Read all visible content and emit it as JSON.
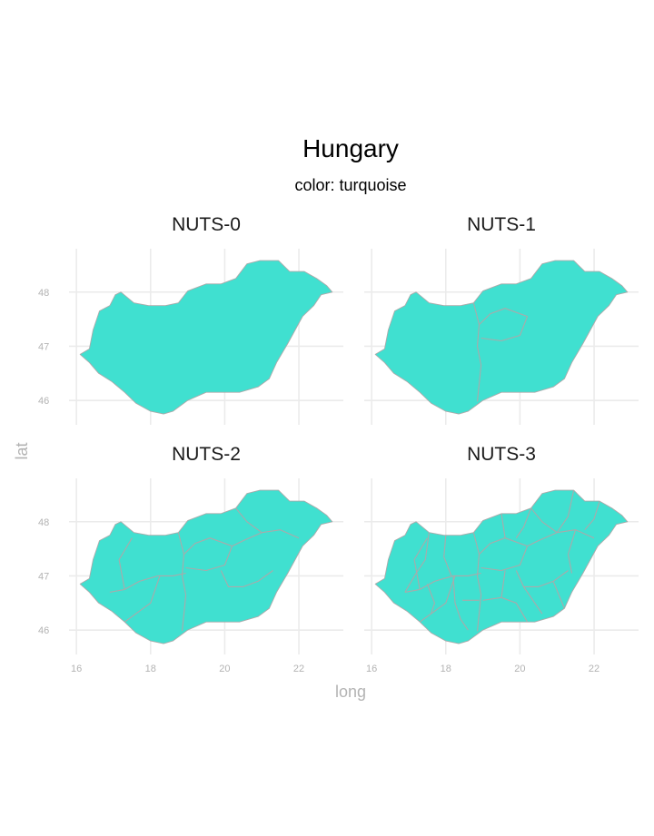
{
  "title": "Hungary",
  "subtitle": "color: turquoise",
  "xlabel": "long",
  "ylabel": "lat",
  "colors": {
    "fill": "#40E0D0",
    "border": "#AAAAAA",
    "grid": "#EBEBEB",
    "tick_text": "#B3B3B3",
    "axis_title": "#B3B3B3",
    "title_text": "#000000"
  },
  "chart_data": {
    "type": "map",
    "xlim": [
      15.8,
      23.2
    ],
    "ylim": [
      45.55,
      48.8
    ],
    "x_ticks": [
      16,
      18,
      20,
      22
    ],
    "y_ticks": [
      46,
      47,
      48
    ],
    "grid": true,
    "outline": [
      [
        16.1,
        46.85
      ],
      [
        16.35,
        46.95
      ],
      [
        16.45,
        47.3
      ],
      [
        16.62,
        47.65
      ],
      [
        16.9,
        47.75
      ],
      [
        17.05,
        47.95
      ],
      [
        17.2,
        48.0
      ],
      [
        17.55,
        47.8
      ],
      [
        17.95,
        47.75
      ],
      [
        18.4,
        47.75
      ],
      [
        18.75,
        47.8
      ],
      [
        19.0,
        48.02
      ],
      [
        19.5,
        48.15
      ],
      [
        19.9,
        48.15
      ],
      [
        20.3,
        48.25
      ],
      [
        20.6,
        48.52
      ],
      [
        20.95,
        48.58
      ],
      [
        21.45,
        48.58
      ],
      [
        21.75,
        48.38
      ],
      [
        22.15,
        48.38
      ],
      [
        22.48,
        48.25
      ],
      [
        22.75,
        48.12
      ],
      [
        22.9,
        48.0
      ],
      [
        22.6,
        47.95
      ],
      [
        22.4,
        47.75
      ],
      [
        22.1,
        47.55
      ],
      [
        21.7,
        47.05
      ],
      [
        21.4,
        46.7
      ],
      [
        21.2,
        46.4
      ],
      [
        20.9,
        46.25
      ],
      [
        20.4,
        46.15
      ],
      [
        19.9,
        46.15
      ],
      [
        19.5,
        46.15
      ],
      [
        19.0,
        46.0
      ],
      [
        18.6,
        45.8
      ],
      [
        18.35,
        45.75
      ],
      [
        18.0,
        45.8
      ],
      [
        17.6,
        45.95
      ],
      [
        17.3,
        46.15
      ],
      [
        16.95,
        46.35
      ],
      [
        16.6,
        46.5
      ],
      [
        16.35,
        46.7
      ]
    ],
    "panels": [
      {
        "label": "NUTS-0",
        "level": 0
      },
      {
        "label": "NUTS-1",
        "level": 1
      },
      {
        "label": "NUTS-2",
        "level": 2
      },
      {
        "label": "NUTS-3",
        "level": 3
      }
    ],
    "borders": {
      "nuts1": [
        [
          [
            18.85,
            45.98
          ],
          [
            18.9,
            46.3
          ],
          [
            18.95,
            46.65
          ],
          [
            18.85,
            47.0
          ],
          [
            18.9,
            47.4
          ],
          [
            18.75,
            47.8
          ]
        ],
        [
          [
            18.9,
            47.4
          ],
          [
            19.2,
            47.6
          ],
          [
            19.6,
            47.7
          ],
          [
            20.2,
            47.55
          ],
          [
            20.0,
            47.2
          ],
          [
            19.5,
            47.1
          ],
          [
            18.95,
            47.15
          ]
        ]
      ],
      "nuts2": [
        [
          [
            16.9,
            46.7
          ],
          [
            17.3,
            46.75
          ],
          [
            17.7,
            46.9
          ],
          [
            18.2,
            47.0
          ],
          [
            18.6,
            47.0
          ],
          [
            18.95,
            47.05
          ]
        ],
        [
          [
            17.3,
            46.75
          ],
          [
            17.15,
            47.3
          ],
          [
            17.5,
            47.7
          ]
        ],
        [
          [
            18.25,
            47.0
          ],
          [
            18.0,
            46.5
          ],
          [
            17.6,
            46.3
          ],
          [
            17.3,
            46.15
          ]
        ],
        [
          [
            19.9,
            47.1
          ],
          [
            20.1,
            46.8
          ],
          [
            20.5,
            46.8
          ],
          [
            20.9,
            46.9
          ],
          [
            21.3,
            47.1
          ]
        ],
        [
          [
            20.2,
            47.55
          ],
          [
            20.5,
            47.65
          ],
          [
            21.0,
            47.8
          ],
          [
            21.5,
            47.85
          ],
          [
            22.0,
            47.7
          ]
        ],
        [
          [
            20.3,
            48.25
          ],
          [
            20.6,
            48.0
          ],
          [
            21.0,
            47.8
          ]
        ]
      ],
      "nuts3": [
        [
          [
            17.55,
            47.8
          ],
          [
            17.45,
            47.3
          ],
          [
            17.2,
            47.05
          ],
          [
            16.9,
            46.7
          ]
        ],
        [
          [
            18.0,
            47.75
          ],
          [
            17.95,
            47.35
          ],
          [
            18.15,
            47.0
          ]
        ],
        [
          [
            17.5,
            46.85
          ],
          [
            17.7,
            46.5
          ],
          [
            17.6,
            46.3
          ]
        ],
        [
          [
            18.2,
            47.0
          ],
          [
            18.25,
            46.5
          ],
          [
            18.4,
            46.2
          ],
          [
            18.6,
            46.0
          ]
        ],
        [
          [
            18.45,
            46.55
          ],
          [
            18.9,
            46.55
          ]
        ],
        [
          [
            19.6,
            47.1
          ],
          [
            19.5,
            46.6
          ],
          [
            19.9,
            46.5
          ],
          [
            20.2,
            46.15
          ]
        ],
        [
          [
            19.5,
            46.6
          ],
          [
            19.0,
            46.55
          ]
        ],
        [
          [
            20.1,
            46.8
          ],
          [
            20.6,
            46.3
          ]
        ],
        [
          [
            20.9,
            46.9
          ],
          [
            21.2,
            46.4
          ]
        ],
        [
          [
            20.3,
            48.25
          ],
          [
            20.1,
            47.9
          ],
          [
            19.9,
            47.7
          ]
        ],
        [
          [
            19.5,
            48.15
          ],
          [
            19.6,
            47.7
          ]
        ],
        [
          [
            21.0,
            47.8
          ],
          [
            21.3,
            48.1
          ],
          [
            21.45,
            48.58
          ]
        ],
        [
          [
            21.5,
            47.85
          ],
          [
            21.3,
            47.4
          ],
          [
            21.4,
            47.05
          ]
        ],
        [
          [
            21.75,
            47.85
          ],
          [
            22.0,
            48.05
          ],
          [
            22.15,
            48.38
          ]
        ]
      ]
    }
  }
}
